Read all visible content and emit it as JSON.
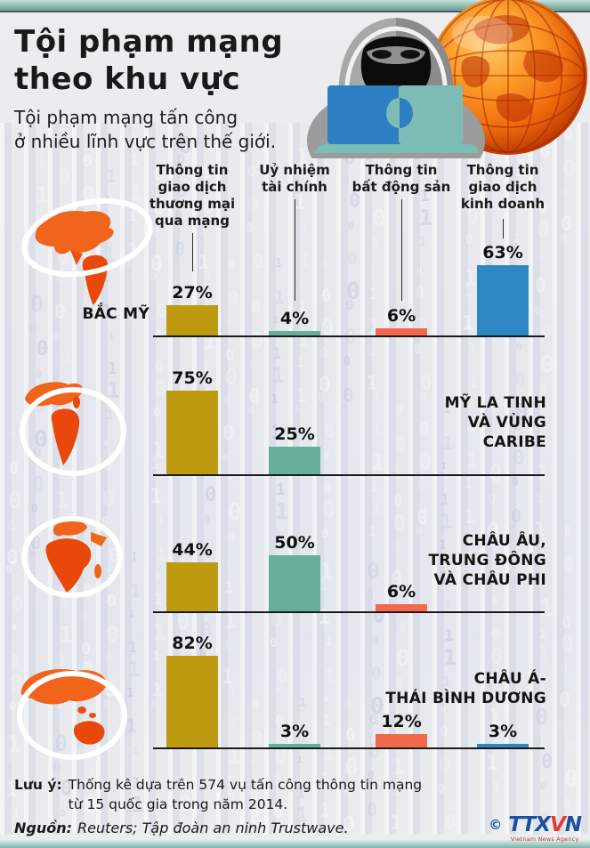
{
  "header": {
    "title_lines": [
      "Tội phạm mạng",
      "theo khu vực"
    ],
    "subtitle_lines": [
      "Tội phạm mạng tấn công",
      "ở nhiều lĩnh vực trên thế giới."
    ]
  },
  "illustrations": {
    "hacker": "hooded-hacker-with-laptop-icon",
    "globe": "orange-globe-icon",
    "region_maps": [
      "americas-map-icon",
      "latin-america-map-icon",
      "europe-africa-map-icon",
      "asia-pacific-map-icon"
    ]
  },
  "chart_data": {
    "type": "bar",
    "value_suffix": "%",
    "categories": [
      {
        "label_lines": [
          "Thông tin",
          "giao dịch",
          "thương mại",
          "qua mạng"
        ],
        "color": "#bd9a0f"
      },
      {
        "label_lines": [
          "Uỷ nhiệm",
          "tài chính"
        ],
        "color": "#68ae9c"
      },
      {
        "label_lines": [
          "Thông tin",
          "bất động sản"
        ],
        "color": "#f2684a"
      },
      {
        "label_lines": [
          "Thông tin",
          "giao dịch",
          "kinh doanh"
        ],
        "color": "#2e86c3"
      }
    ],
    "rows": [
      {
        "region_lines": [
          "BẮC MỸ"
        ],
        "values": [
          27,
          4,
          6,
          63
        ]
      },
      {
        "region_lines": [
          "MỸ LA TINH",
          "VÀ VÙNG",
          "CARIBE"
        ],
        "values": [
          75,
          25,
          null,
          null
        ]
      },
      {
        "region_lines": [
          "CHÂU ÂU,",
          "TRUNG ĐÔNG",
          "VÀ CHÂU PHI"
        ],
        "values": [
          44,
          50,
          6,
          null
        ]
      },
      {
        "region_lines": [
          "CHÂU Á-",
          "THÁI BÌNH DƯƠNG"
        ],
        "values": [
          82,
          3,
          12,
          3
        ]
      }
    ],
    "ylim": [
      0,
      100
    ],
    "grid": false,
    "legend": "none"
  },
  "footer": {
    "note_label": "Lưu ý:",
    "note_lines": [
      "Thống kê dựa trên 574 vụ tấn công thông tin mạng",
      "từ 15 quốc gia trong năm 2014."
    ],
    "source_label": "Nguồn:",
    "source_text": "Reuters; Tập đoàn an ninh Trustwave.",
    "copyright": "©",
    "logo_ttx": "TTX",
    "logo_v": "V",
    "logo_n": "N",
    "agency_subtext": "Vietnam News Agency"
  },
  "colors": {
    "gold": "#bd9a0f",
    "teal": "#68ae9c",
    "orange": "#f2684a",
    "blue": "#2e86c3",
    "band": "#7fb1a8"
  }
}
